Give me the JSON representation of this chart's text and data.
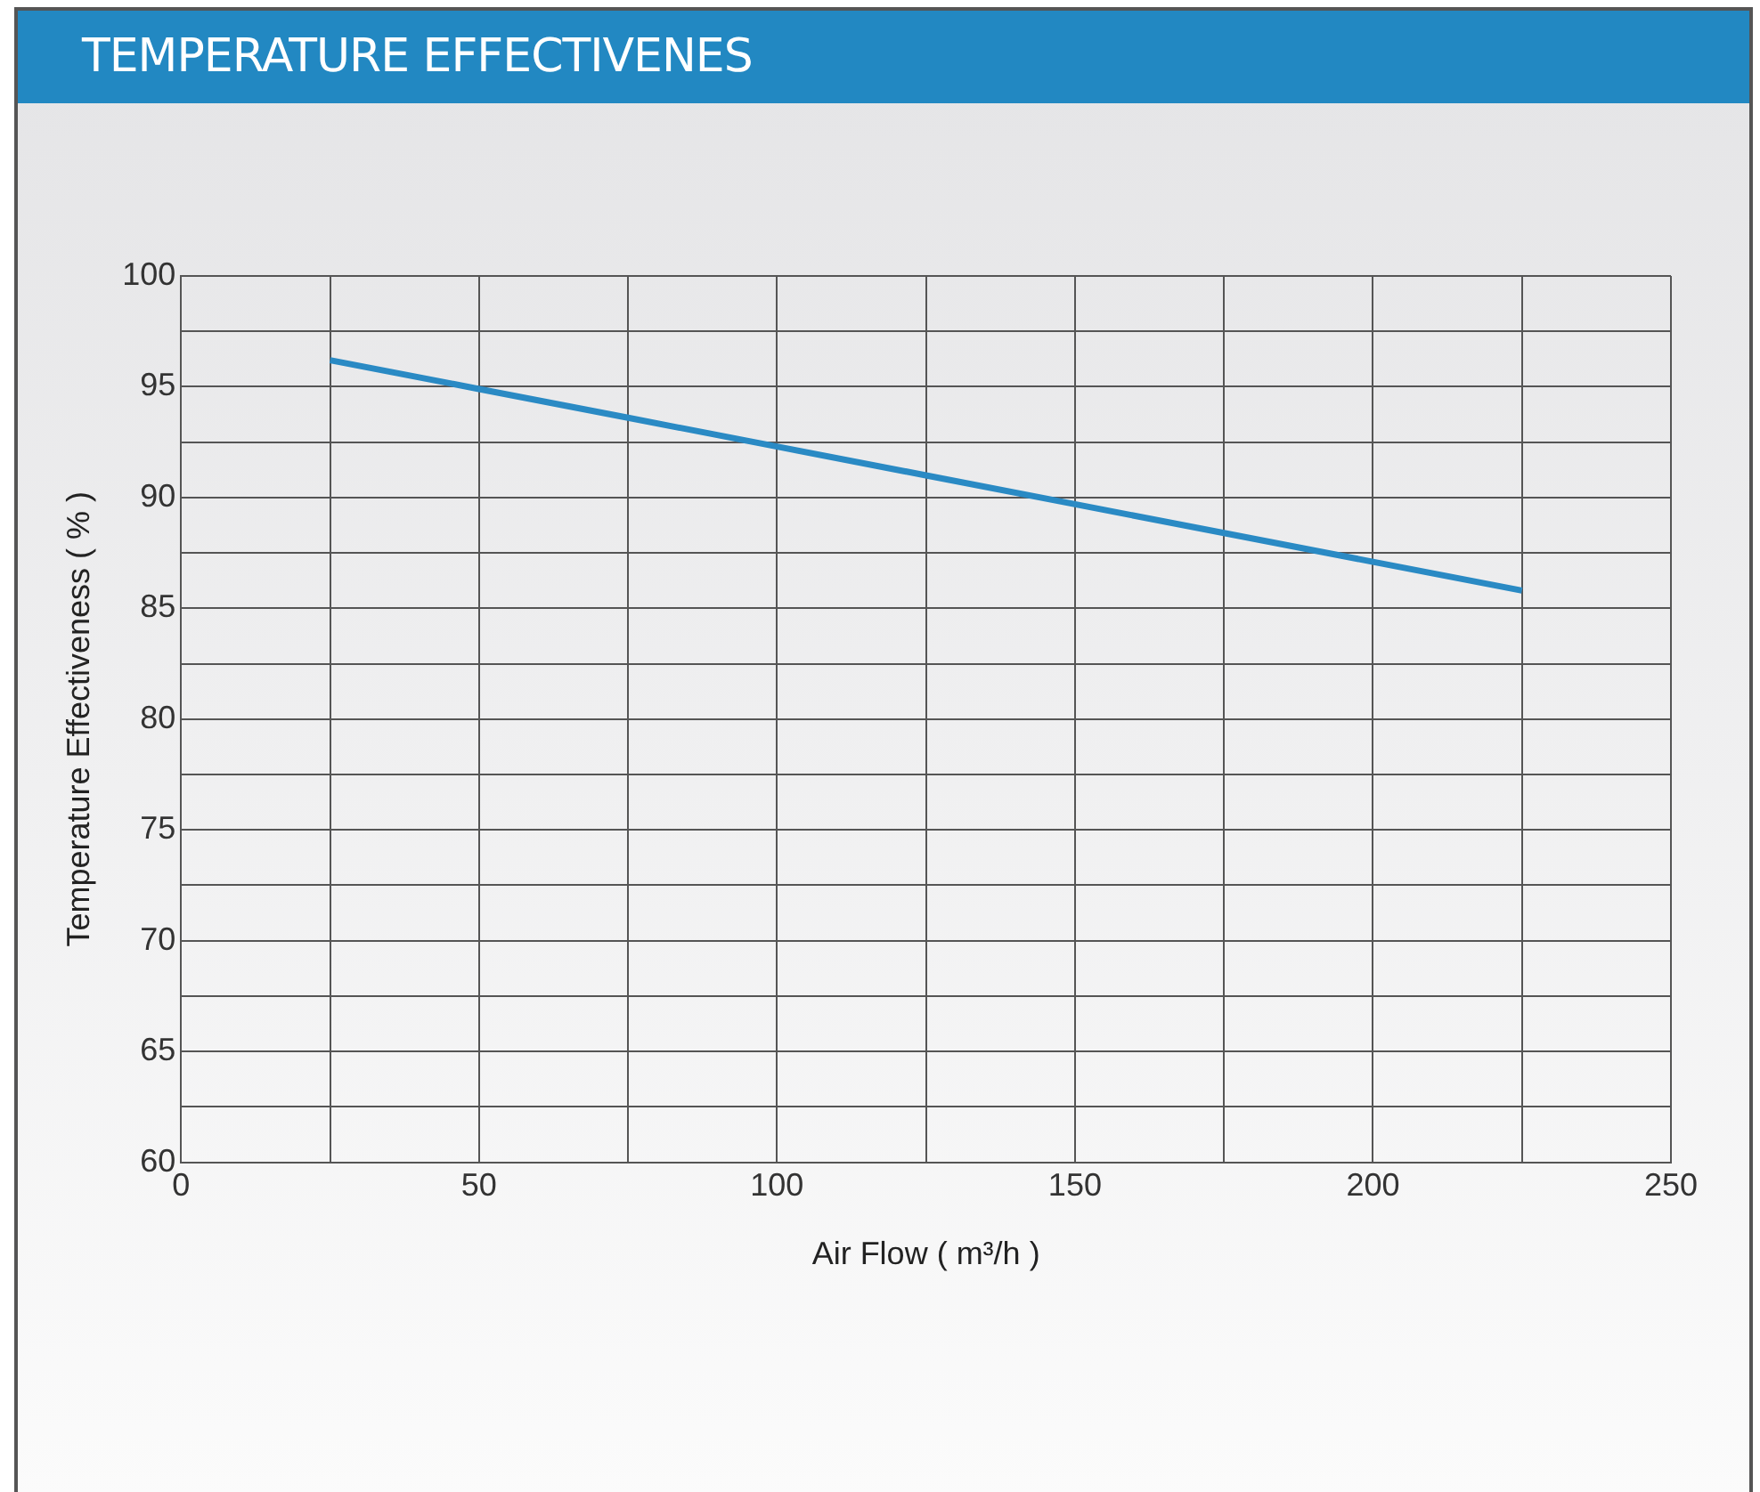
{
  "chart_data": {
    "type": "line",
    "title": "TEMPERATURE EFFECTIVENES",
    "xlabel": "Air Flow ( m³/h )",
    "ylabel": "Temperature Effectiveness ( % )",
    "x": [
      25,
      50,
      75,
      100,
      125,
      150,
      175,
      200,
      225
    ],
    "values": [
      96.2,
      94.9,
      93.6,
      92.3,
      91.0,
      89.7,
      88.4,
      87.1,
      85.8
    ],
    "color": "#2a8ac4",
    "marker": "none",
    "line_style": "solid",
    "grid": true,
    "xlim": [
      0,
      250
    ],
    "xticks": [
      0,
      {
        "value": 25,
        "label": null
      },
      50,
      {
        "value": 75,
        "label": null
      },
      100,
      {
        "value": 125,
        "label": null
      },
      150,
      {
        "value": 175,
        "label": null
      },
      200,
      {
        "value": 225,
        "label": null
      },
      250
    ],
    "ylim": [
      60,
      100
    ],
    "yticks": [
      60,
      {
        "value": 62.5,
        "label": null
      },
      65,
      {
        "value": 67.5,
        "label": null
      },
      70,
      {
        "value": 72.5,
        "label": null
      },
      75,
      {
        "value": 77.5,
        "label": null
      },
      80,
      {
        "value": 82.5,
        "label": null
      },
      85,
      {
        "value": 87.5,
        "label": null
      },
      90,
      {
        "value": 92.5,
        "label": null
      },
      95,
      {
        "value": 97.5,
        "label": null
      },
      100
    ]
  }
}
